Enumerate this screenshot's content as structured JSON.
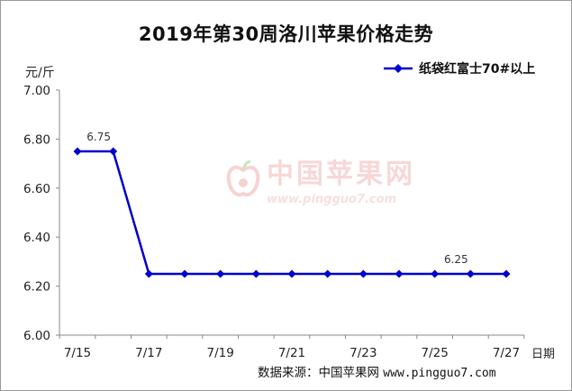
{
  "chart_data": {
    "type": "line",
    "title": "2019年第30周洛川苹果价格走势",
    "ylabel": "元/斤",
    "xlabel": "日期",
    "ylim": [
      6.0,
      7.0
    ],
    "yticks": [
      "6.00",
      "6.20",
      "6.40",
      "6.60",
      "6.80",
      "7.00"
    ],
    "x": [
      "7/15",
      "7/16",
      "7/17",
      "7/18",
      "7/19",
      "7/20",
      "7/21",
      "7/22",
      "7/23",
      "7/24",
      "7/25",
      "7/26",
      "7/27"
    ],
    "xtick_labels": [
      "7/15",
      "7/17",
      "7/19",
      "7/21",
      "7/23",
      "7/25",
      "7/27"
    ],
    "series": [
      {
        "name": "纸袋红富士70#以上",
        "color": "#0000cc",
        "values": [
          6.75,
          6.75,
          6.25,
          6.25,
          6.25,
          6.25,
          6.25,
          6.25,
          6.25,
          6.25,
          6.25,
          6.25,
          6.25
        ]
      }
    ],
    "annotations": [
      {
        "index": 1,
        "text": "6.75"
      },
      {
        "index": 11,
        "text": "6.25"
      }
    ],
    "legend_position": "top-right",
    "grid": false
  },
  "source": {
    "label": "数据来源：中国苹果网",
    "url": "www.pingguo7.com"
  },
  "watermark": {
    "name": "中国苹果网",
    "url": "www.pingguo7.com"
  }
}
